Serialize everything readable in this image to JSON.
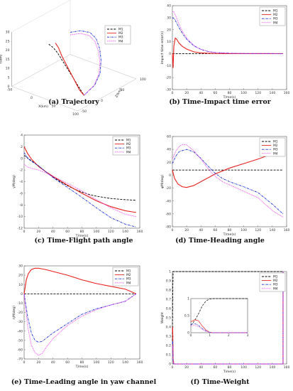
{
  "legend": [
    "M1",
    "M2",
    "M3",
    "M4"
  ],
  "colors": {
    "M1": "#000000",
    "M2": "#e8201e",
    "M3": "#1b2fd8",
    "M4": "#f230f0"
  },
  "chart_data": [
    {
      "id": "a",
      "type": "line3d",
      "caption_letter": "(a)",
      "caption_text": "Trajectory",
      "xlabel": "X(km)",
      "ylabel": "Y(km)",
      "zlabel": "Z(km)",
      "x_ticks": [
        "-50",
        "0",
        "50",
        "100"
      ],
      "y_ticks": [
        "0",
        "5",
        "10",
        "15",
        "20",
        "25",
        "30"
      ],
      "z_ticks": [
        "-50",
        "0",
        "50",
        "100"
      ],
      "series": [
        {
          "name": "M1",
          "points": [
            [
              -10,
              21,
              0
            ],
            [
              0,
              20,
              0
            ],
            [
              10,
              18,
              0
            ],
            [
              20,
              15,
              0
            ],
            [
              30,
              12,
              0
            ],
            [
              40,
              9,
              0
            ],
            [
              50,
              6,
              0
            ],
            [
              60,
              3,
              0
            ],
            [
              70,
              0,
              0
            ]
          ]
        },
        {
          "name": "M2",
          "points": [
            [
              5,
              23,
              0
            ],
            [
              12,
              21,
              0
            ],
            [
              20,
              17,
              0
            ],
            [
              28,
              14,
              0
            ],
            [
              36,
              11,
              0
            ],
            [
              44,
              8,
              0
            ],
            [
              52,
              5,
              0
            ],
            [
              60,
              2,
              0
            ],
            [
              70,
              0,
              0
            ]
          ]
        },
        {
          "name": "M3",
          "points": [
            [
              30,
              30,
              10
            ],
            [
              40,
              30,
              25
            ],
            [
              48,
              28,
              40
            ],
            [
              53,
              24,
              50
            ],
            [
              57,
              18,
              55
            ],
            [
              60,
              12,
              55
            ],
            [
              64,
              6,
              48
            ],
            [
              68,
              2,
              30
            ],
            [
              70,
              0,
              0
            ]
          ]
        },
        {
          "name": "M4",
          "points": [
            [
              32,
              29,
              8
            ],
            [
              42,
              29,
              22
            ],
            [
              49,
              27,
              36
            ],
            [
              54,
              23,
              46
            ],
            [
              58,
              17,
              51
            ],
            [
              61,
              11,
              51
            ],
            [
              64,
              6,
              45
            ],
            [
              68,
              2,
              28
            ],
            [
              70,
              0,
              0
            ]
          ]
        }
      ]
    },
    {
      "id": "b",
      "type": "line",
      "caption_letter": "(b)",
      "caption_text": "Time-Impact time error",
      "xlabel": "T/me(s)",
      "ylabel": "Impact time error(s)",
      "xlim": [
        0,
        160
      ],
      "ylim": [
        -30,
        40
      ],
      "x_ticks": [
        0,
        20,
        40,
        60,
        80,
        100,
        120,
        140,
        160
      ],
      "y_ticks": [
        -30,
        -20,
        -10,
        0,
        10,
        20,
        30,
        40
      ],
      "legend_position": "top-right",
      "series": [
        {
          "name": "M1",
          "x": [
            0,
            155
          ],
          "y": [
            0,
            0
          ]
        },
        {
          "name": "M2",
          "x": [
            0,
            1,
            2,
            4,
            6,
            9,
            14,
            20,
            30,
            40,
            60,
            80,
            155
          ],
          "y": [
            0,
            -12,
            6,
            13,
            12,
            9,
            6,
            3.8,
            1.5,
            0.6,
            0.1,
            0,
            0
          ]
        },
        {
          "name": "M3",
          "x": [
            0,
            3,
            6,
            10,
            15,
            20,
            30,
            40,
            50,
            60,
            80,
            100,
            155
          ],
          "y": [
            30,
            29,
            25.5,
            21,
            16,
            12,
            6.5,
            3.5,
            1.8,
            0.9,
            0.3,
            0.1,
            0
          ]
        },
        {
          "name": "M4",
          "x": [
            0,
            2,
            5,
            9,
            14,
            20,
            30,
            40,
            50,
            60,
            80,
            100,
            155
          ],
          "y": [
            35,
            35,
            31,
            25,
            18.5,
            13,
            6.8,
            3.6,
            1.8,
            0.9,
            0.3,
            0.1,
            0
          ]
        }
      ]
    },
    {
      "id": "c",
      "type": "line",
      "caption_letter": "(c)",
      "caption_text": "Time-Flight path angle",
      "xlabel": "T/me(s)",
      "ylabel": "γM(deg)",
      "xlim": [
        0,
        160
      ],
      "ylim": [
        -12,
        4
      ],
      "x_ticks": [
        0,
        20,
        40,
        60,
        80,
        100,
        120,
        140,
        160
      ],
      "y_ticks": [
        -12,
        -10,
        -8,
        -6,
        -4,
        -2,
        0,
        2,
        4
      ],
      "legend_position": "top-right",
      "series": [
        {
          "name": "M1",
          "x": [
            0,
            10,
            20,
            30,
            40,
            50,
            60,
            70,
            80,
            90,
            100,
            120,
            140,
            155
          ],
          "y": [
            0.5,
            -0.4,
            -1.3,
            -2.3,
            -3.2,
            -4.0,
            -4.7,
            -5.3,
            -5.8,
            -6.2,
            -6.5,
            -6.9,
            -7.1,
            -7.2
          ]
        },
        {
          "name": "M2",
          "x": [
            0,
            5,
            10,
            20,
            30,
            40,
            60,
            80,
            100,
            120,
            140,
            155
          ],
          "y": [
            2.0,
            0.8,
            -0.1,
            -1.4,
            -2.3,
            -3.1,
            -4.6,
            -6.0,
            -7.3,
            -8.3,
            -9.0,
            -9.3
          ]
        },
        {
          "name": "M3",
          "x": [
            0,
            5,
            10,
            20,
            30,
            40,
            60,
            80,
            100,
            120,
            140,
            155
          ],
          "y": [
            1.0,
            0.0,
            -0.5,
            -1.3,
            -2.3,
            -3.3,
            -5.0,
            -6.7,
            -8.5,
            -10.2,
            -11.3,
            -11.8
          ]
        },
        {
          "name": "M4",
          "x": [
            0,
            5,
            10,
            20,
            30,
            40,
            60,
            80,
            100,
            120,
            140,
            155
          ],
          "y": [
            -1.0,
            -1.5,
            -1.7,
            -2.0,
            -2.5,
            -3.1,
            -4.3,
            -5.6,
            -7.1,
            -8.5,
            -9.6,
            -10.0
          ]
        }
      ]
    },
    {
      "id": "d",
      "type": "line",
      "caption_letter": "(d)",
      "caption_text": "Time-Heading angle",
      "xlabel": "T/me(s)",
      "ylabel": "ψM(deg)",
      "xlim": [
        0,
        160
      ],
      "ylim": [
        -80,
        60
      ],
      "x_ticks": [
        0,
        20,
        40,
        60,
        80,
        100,
        120,
        140,
        160
      ],
      "y_ticks": [
        -80,
        -60,
        -40,
        -20,
        0,
        20,
        40,
        60
      ],
      "legend_position": "top-right",
      "series": [
        {
          "name": "M1",
          "x": [
            0,
            155
          ],
          "y": [
            8,
            8
          ]
        },
        {
          "name": "M2",
          "x": [
            0,
            3,
            8,
            14,
            20,
            30,
            40,
            60,
            80,
            100,
            120,
            140,
            155
          ],
          "y": [
            8,
            -5,
            -14,
            -18,
            -19,
            -16,
            -10,
            2,
            11,
            18,
            25,
            33,
            40
          ]
        },
        {
          "name": "M3",
          "x": [
            0,
            5,
            10,
            20,
            30,
            40,
            50,
            60,
            70,
            80,
            90,
            100,
            120,
            140,
            155
          ],
          "y": [
            18,
            30,
            37,
            40,
            36,
            26,
            14,
            3,
            -5,
            -10,
            -14,
            -18,
            -27,
            -45,
            -60
          ]
        },
        {
          "name": "M4",
          "x": [
            0,
            5,
            10,
            15,
            20,
            30,
            40,
            50,
            60,
            70,
            80,
            90,
            100,
            120,
            140,
            155
          ],
          "y": [
            25,
            38,
            45,
            48,
            47,
            38,
            25,
            10,
            -2,
            -10,
            -15,
            -20,
            -25,
            -35,
            -55,
            -65
          ]
        }
      ]
    },
    {
      "id": "e",
      "type": "line",
      "caption_letter": "(e)",
      "caption_text": "Time-Leading angle in yaw channel",
      "xlabel": "T/me(s)",
      "ylabel": "ηM(deg)",
      "xlim": [
        0,
        160
      ],
      "ylim": [
        -70,
        30
      ],
      "x_ticks": [
        0,
        20,
        40,
        60,
        80,
        100,
        120,
        140,
        160
      ],
      "y_ticks": [
        -70,
        -60,
        -50,
        -40,
        -30,
        -20,
        -10,
        0,
        10,
        20,
        30
      ],
      "legend_position": "top-right",
      "series": [
        {
          "name": "M1",
          "x": [
            0,
            155
          ],
          "y": [
            0,
            0
          ]
        },
        {
          "name": "M2",
          "x": [
            0,
            3,
            6,
            10,
            15,
            20,
            30,
            40,
            60,
            80,
            100,
            120,
            140,
            155
          ],
          "y": [
            0,
            15,
            22,
            26,
            27.5,
            27.5,
            26,
            24,
            20,
            15,
            11,
            8,
            5,
            0
          ]
        },
        {
          "name": "M3",
          "x": [
            0,
            2,
            5,
            10,
            15,
            20,
            25,
            30,
            40,
            60,
            80,
            100,
            120,
            140,
            155
          ],
          "y": [
            0,
            -10,
            -25,
            -42,
            -50,
            -52,
            -51,
            -48,
            -42,
            -32,
            -22,
            -16,
            -12,
            -8,
            0
          ]
        },
        {
          "name": "M4",
          "x": [
            0,
            2,
            5,
            10,
            15,
            20,
            25,
            30,
            40,
            60,
            80,
            100,
            120,
            140,
            155
          ],
          "y": [
            0,
            -15,
            -35,
            -55,
            -63,
            -66,
            -64,
            -58,
            -48,
            -34,
            -24,
            -17,
            -12,
            -8,
            0
          ]
        }
      ]
    },
    {
      "id": "f",
      "type": "line",
      "caption_letter": "(f)",
      "caption_text": "Time-Weight",
      "xlabel": "Time(s)",
      "ylabel": "Weight",
      "xlim": [
        0,
        160
      ],
      "ylim": [
        0,
        1
      ],
      "x_ticks": [
        0,
        20,
        40,
        60,
        80,
        100,
        120,
        140,
        160
      ],
      "y_ticks": [
        0,
        0.1,
        0.2,
        0.3,
        0.4,
        0.5,
        0.6,
        0.7,
        0.8,
        0.9,
        1
      ],
      "legend_position": "top-right",
      "series": [
        {
          "name": "M1",
          "x": [
            0,
            0.5,
            1,
            155
          ],
          "y": [
            0.25,
            0.8,
            1,
            1
          ]
        },
        {
          "name": "M2",
          "x": [
            0,
            0.4,
            1,
            2,
            155,
            155
          ],
          "y": [
            0.35,
            0.4,
            0.05,
            0,
            0,
            1
          ]
        },
        {
          "name": "M3",
          "x": [
            0,
            0.5,
            1,
            2,
            155,
            155
          ],
          "y": [
            0.22,
            0.25,
            0.03,
            0,
            0,
            1
          ]
        },
        {
          "name": "M4",
          "x": [
            0,
            0.5,
            1,
            2,
            155,
            155
          ],
          "y": [
            0.18,
            0.2,
            0.02,
            0,
            0,
            1
          ]
        }
      ],
      "inset": {
        "xlim": [
          0,
          3
        ],
        "ylim": [
          0,
          1
        ],
        "x_ticks": [
          0,
          1,
          2,
          3
        ],
        "y_ticks": [
          0,
          0.5,
          1
        ],
        "series": [
          {
            "name": "M1",
            "x": [
              0,
              0.2,
              0.4,
              0.6,
              0.8,
              1.0,
              1.2,
              3
            ],
            "y": [
              0.22,
              0.35,
              0.55,
              0.78,
              0.93,
              0.99,
              1,
              1
            ]
          },
          {
            "name": "M2",
            "x": [
              0,
              0.2,
              0.4,
              0.6,
              0.8,
              1.0,
              1.2,
              3
            ],
            "y": [
              0.32,
              0.38,
              0.35,
              0.2,
              0.08,
              0.01,
              0,
              0
            ]
          },
          {
            "name": "M3",
            "x": [
              0,
              0.2,
              0.4,
              0.6,
              0.8,
              1.0,
              1.2,
              3
            ],
            "y": [
              0.24,
              0.27,
              0.22,
              0.12,
              0.05,
              0.01,
              0,
              0
            ]
          },
          {
            "name": "M4",
            "x": [
              0,
              0.2,
              0.4,
              0.6,
              0.8,
              1.0,
              1.2,
              3
            ],
            "y": [
              0.2,
              0.22,
              0.18,
              0.1,
              0.04,
              0.01,
              0,
              0
            ]
          }
        ]
      }
    }
  ]
}
